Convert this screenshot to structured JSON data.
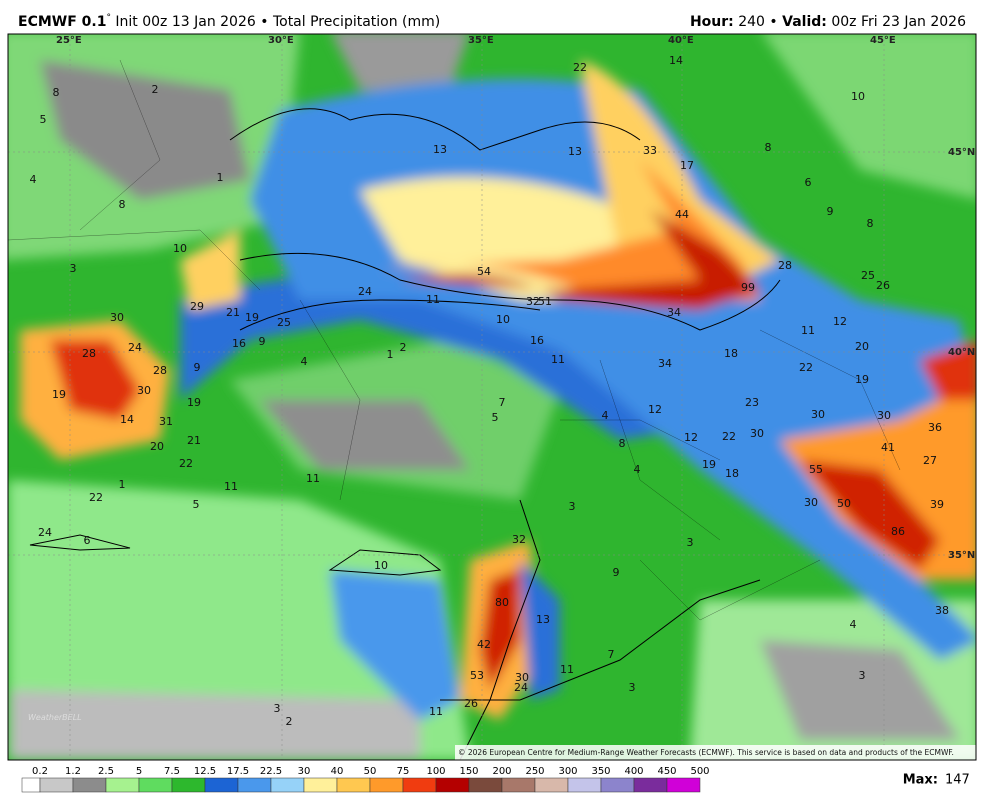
{
  "header": {
    "model": "ECMWF 0.1",
    "model_suffix": "°",
    "init": "Init 00z 13 Jan 2026",
    "field": "Total Precipitation (mm)",
    "hour_label": "Hour:",
    "hour": "240",
    "valid_label": "Valid:",
    "valid": "00z Fri 23 Jan 2026",
    "separator": "•"
  },
  "map": {
    "lon_labels": [
      "25°E",
      "30°E",
      "35°E",
      "40°E",
      "45°E"
    ],
    "lat_labels": [
      "45°N",
      "40°N",
      "35°N"
    ],
    "labels": [
      "2",
      "8",
      "5",
      "1",
      "4",
      "8",
      "10",
      "3",
      "29",
      "21",
      "19",
      "25",
      "30",
      "24",
      "54",
      "11",
      "16",
      "9",
      "4",
      "1",
      "2",
      "28",
      "24",
      "28",
      "9",
      "19",
      "30",
      "19",
      "14",
      "31",
      "20",
      "21",
      "22",
      "22",
      "14",
      "13",
      "13",
      "33",
      "17",
      "44",
      "10",
      "8",
      "6",
      "9",
      "8",
      "28",
      "25",
      "26",
      "99",
      "51",
      "32",
      "34",
      "10",
      "11",
      "12",
      "16",
      "11",
      "18",
      "20",
      "34",
      "22",
      "19",
      "23",
      "30",
      "30",
      "36",
      "12",
      "12",
      "22",
      "30",
      "41",
      "27",
      "19",
      "18",
      "55",
      "30",
      "50",
      "39",
      "86",
      "7",
      "5",
      "4",
      "8",
      "4",
      "11",
      "11",
      "3",
      "3",
      "32",
      "10",
      "9",
      "80",
      "13",
      "42",
      "11",
      "53",
      "30",
      "24",
      "7",
      "3",
      "26",
      "11",
      "4",
      "38",
      "3",
      "3",
      "2",
      "6",
      "24",
      "5",
      "22",
      "1"
    ],
    "logo": "WeatherBELL",
    "credit": "© 2026 European Centre for Medium-Range Weather Forecasts (ECMWF). This service is based on data and products of the ECMWF."
  },
  "colorbar": {
    "ticks": [
      "0.2",
      "1.2",
      "2.5",
      "5",
      "7.5",
      "12.5",
      "17.5",
      "22.5",
      "30",
      "40",
      "50",
      "75",
      "100",
      "150",
      "200",
      "250",
      "300",
      "350",
      "400",
      "450",
      "500"
    ],
    "colors": [
      "#ffffff",
      "#c8c8c8",
      "#8c8c8c",
      "#a6f28f",
      "#5fdc5f",
      "#2db82d",
      "#1c64d4",
      "#4a98ec",
      "#96d2f8",
      "#fff09a",
      "#ffc850",
      "#ff9a2a",
      "#f03c10",
      "#b40000",
      "#7a4a3c",
      "#a8786a",
      "#d8b8aa",
      "#c4c4ea",
      "#8c84cc",
      "#7a2c9c",
      "#d000d8"
    ],
    "max_label": "Max:",
    "max": "147"
  }
}
